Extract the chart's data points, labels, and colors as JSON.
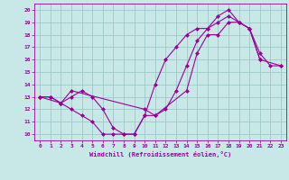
{
  "xlabel": "Windchill (Refroidissement éolien,°C)",
  "bg_color": "#c8e8e8",
  "grid_color": "#a0c8c8",
  "line_color": "#990099",
  "line1_x": [
    0,
    1,
    2,
    3,
    4,
    5,
    6,
    7,
    8,
    9,
    10,
    11,
    12,
    13,
    14,
    15,
    16,
    17,
    18,
    19,
    20,
    21,
    22,
    23
  ],
  "line1_y": [
    13,
    13,
    12.5,
    12,
    11.5,
    11,
    10,
    10,
    10,
    10,
    11.5,
    11.5,
    12,
    13.5,
    15.5,
    17.5,
    18.5,
    19.5,
    20,
    19,
    18.5,
    16.5,
    15.5,
    15.5
  ],
  "line2_x": [
    0,
    1,
    2,
    3,
    4,
    5,
    6,
    7,
    8,
    9,
    10,
    11,
    12,
    13,
    14,
    15,
    16,
    17,
    18,
    19,
    20,
    21
  ],
  "line2_y": [
    13,
    13,
    12.5,
    13,
    13.5,
    13,
    12,
    10.5,
    10,
    10,
    11.5,
    14,
    16,
    17,
    18,
    18.5,
    18.5,
    19,
    19.5,
    19,
    18.5,
    16
  ],
  "line3_x": [
    0,
    2,
    3,
    10,
    11,
    14,
    15,
    16,
    17,
    18,
    19,
    20,
    21,
    23
  ],
  "line3_y": [
    13,
    12.5,
    13.5,
    12,
    11.5,
    13.5,
    16.5,
    18,
    18,
    19,
    19,
    18.5,
    16,
    15.5
  ],
  "xlim": [
    -0.5,
    23.5
  ],
  "ylim": [
    9.5,
    20.5
  ],
  "yticks": [
    10,
    11,
    12,
    13,
    14,
    15,
    16,
    17,
    18,
    19,
    20
  ],
  "xticks": [
    0,
    1,
    2,
    3,
    4,
    5,
    6,
    7,
    8,
    9,
    10,
    11,
    12,
    13,
    14,
    15,
    16,
    17,
    18,
    19,
    20,
    21,
    22,
    23
  ],
  "marker": "D",
  "markersize": 2.5,
  "linewidth": 0.8
}
